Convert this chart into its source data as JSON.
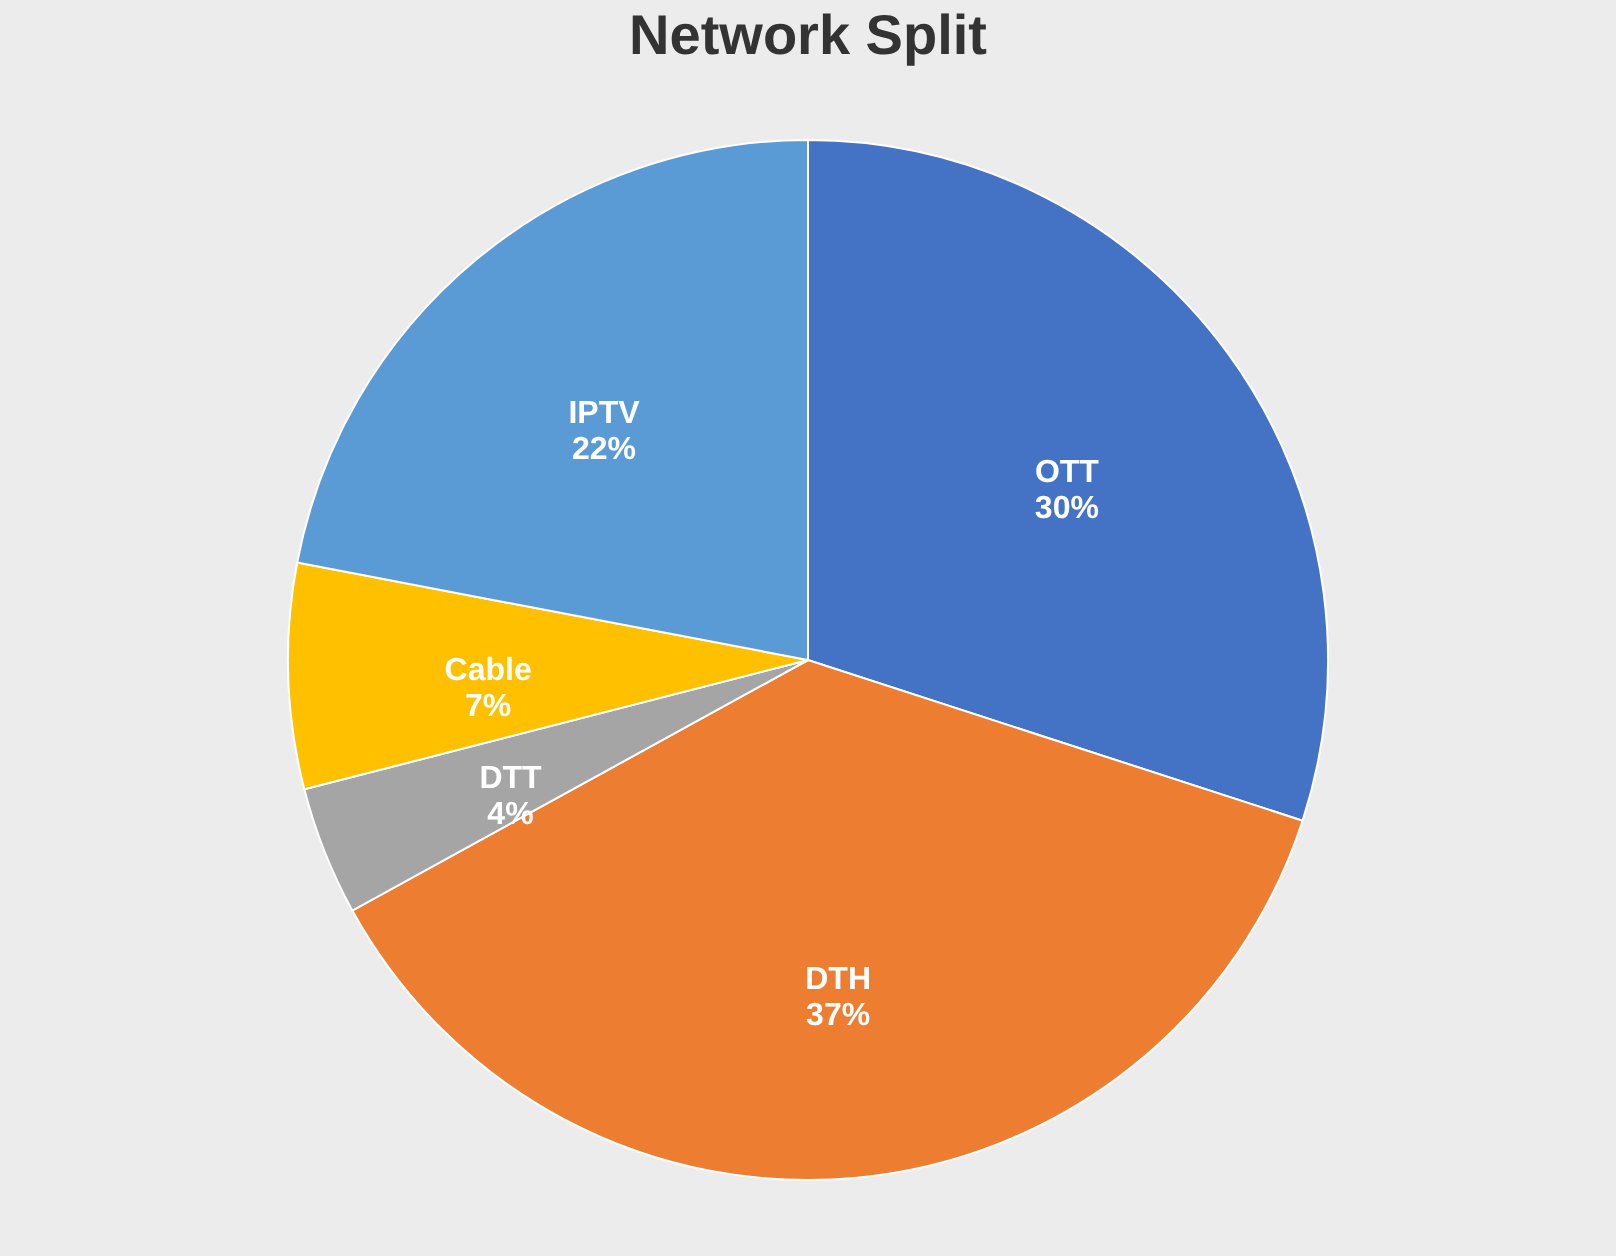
{
  "chart_data": {
    "type": "pie",
    "title": "Network Split",
    "categories": [
      "OTT",
      "DTH",
      "DTT",
      "Cable",
      "IPTV"
    ],
    "values": [
      30,
      37,
      4,
      7,
      22
    ],
    "value_labels": [
      "30%",
      "37%",
      "4%",
      "7%",
      "22%"
    ],
    "colors": [
      "#4472c4",
      "#ed7d31",
      "#a5a5a5",
      "#ffc000",
      "#5b9bd5"
    ],
    "legend": false
  }
}
